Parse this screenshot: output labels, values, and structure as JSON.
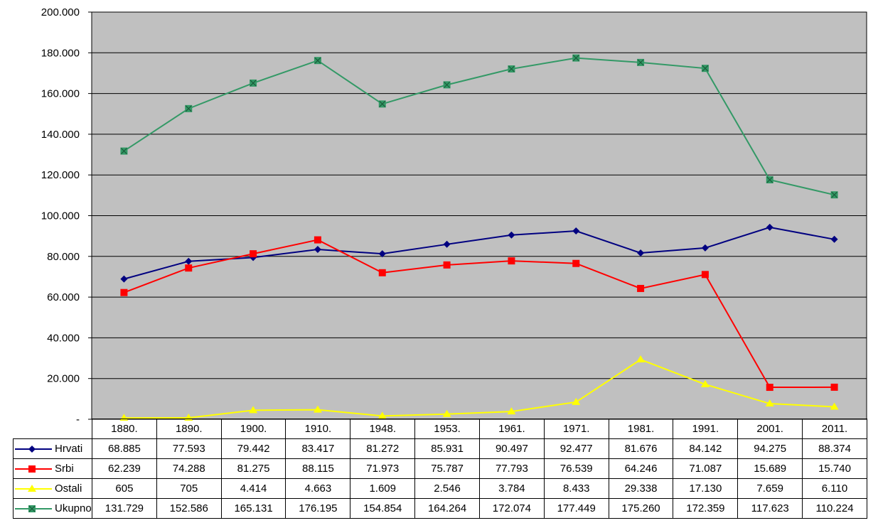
{
  "chart_data": {
    "type": "line",
    "categories": [
      "1880.",
      "1890.",
      "1900.",
      "1910.",
      "1948.",
      "1953.",
      "1961.",
      "1971.",
      "1981.",
      "1991.",
      "2001.",
      "2011."
    ],
    "ylim": [
      0,
      200000
    ],
    "yticks": [
      0,
      20000,
      40000,
      60000,
      80000,
      100000,
      120000,
      140000,
      160000,
      180000,
      200000
    ],
    "ytick_labels": [
      "-",
      "20.000",
      "40.000",
      "60.000",
      "80.000",
      "100.000",
      "120.000",
      "140.000",
      "160.000",
      "180.000",
      "200.000"
    ],
    "grid": true,
    "plot_background": "#c0c0c0",
    "legend": "data-table-below",
    "series": [
      {
        "name": "Hrvati",
        "color": "#000080",
        "marker": "diamond",
        "values": [
          68885,
          77593,
          79442,
          83417,
          81272,
          85931,
          90497,
          92477,
          81676,
          84142,
          94275,
          88374
        ],
        "labels": [
          "68.885",
          "77.593",
          "79.442",
          "83.417",
          "81.272",
          "85.931",
          "90.497",
          "92.477",
          "81.676",
          "84.142",
          "94.275",
          "88.374"
        ]
      },
      {
        "name": "Srbi",
        "color": "#ff0000",
        "marker": "square",
        "values": [
          62239,
          74288,
          81275,
          88115,
          71973,
          75787,
          77793,
          76539,
          64246,
          71087,
          15689,
          15740
        ],
        "labels": [
          "62.239",
          "74.288",
          "81.275",
          "88.115",
          "71.973",
          "75.787",
          "77.793",
          "76.539",
          "64.246",
          "71.087",
          "15.689",
          "15.740"
        ]
      },
      {
        "name": "Ostali",
        "color": "#ffff00",
        "marker": "triangle",
        "values": [
          605,
          705,
          4414,
          4663,
          1609,
          2546,
          3784,
          8433,
          29338,
          17130,
          7659,
          6110
        ],
        "labels": [
          "605",
          "705",
          "4.414",
          "4.663",
          "1.609",
          "2.546",
          "3.784",
          "8.433",
          "29.338",
          "17.130",
          "7.659",
          "6.110"
        ]
      },
      {
        "name": "Ukupno",
        "color": "#339966",
        "marker": "square-x",
        "values": [
          131729,
          152586,
          165131,
          176195,
          154854,
          164264,
          172074,
          177449,
          175260,
          172359,
          117623,
          110224
        ],
        "labels": [
          "131.729",
          "152.586",
          "165.131",
          "176.195",
          "154.854",
          "164.264",
          "172.074",
          "177.449",
          "175.260",
          "172.359",
          "117.623",
          "110.224"
        ]
      }
    ]
  }
}
